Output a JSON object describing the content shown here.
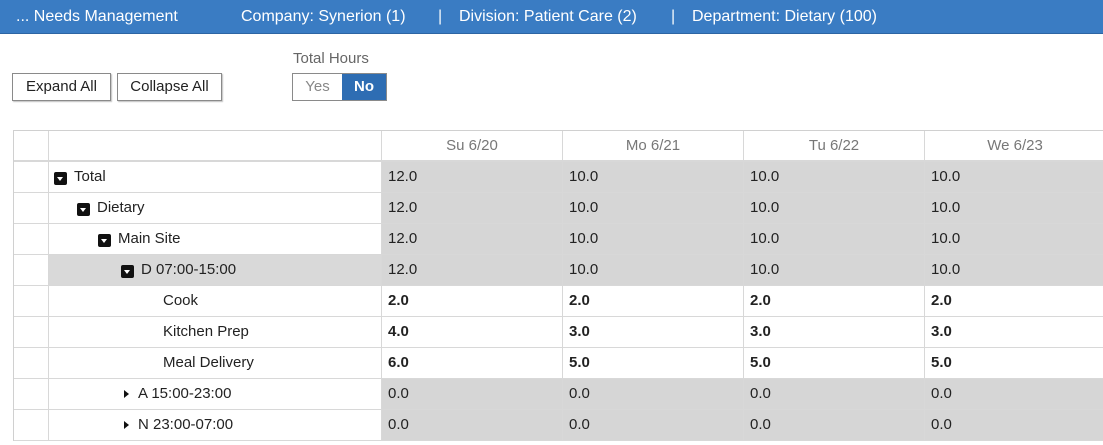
{
  "header": {
    "title": "... Needs Management",
    "company": "Company: Synerion (1)",
    "division": "Division: Patient Care (2)",
    "department": "Department: Dietary (100)",
    "separator": "|"
  },
  "toolbar": {
    "expand_all": "Expand All",
    "collapse_all": "Collapse All",
    "total_hours_label": "Total Hours",
    "yes": "Yes",
    "no": "No"
  },
  "grid": {
    "days": [
      "Su 6/20",
      "Mo 6/21",
      "Tu 6/22",
      "We 6/23"
    ],
    "rows": [
      {
        "label": "Total",
        "state": "expanded",
        "values": [
          "12.0",
          "10.0",
          "10.0",
          "10.0"
        ]
      },
      {
        "label": "Dietary",
        "state": "expanded",
        "values": [
          "12.0",
          "10.0",
          "10.0",
          "10.0"
        ]
      },
      {
        "label": "Main Site",
        "state": "expanded",
        "values": [
          "12.0",
          "10.0",
          "10.0",
          "10.0"
        ]
      },
      {
        "label": "D 07:00-15:00",
        "state": "expanded",
        "values": [
          "12.0",
          "10.0",
          "10.0",
          "10.0"
        ]
      },
      {
        "label": "Cook",
        "state": "leaf",
        "values": [
          "2.0",
          "2.0",
          "2.0",
          "2.0"
        ]
      },
      {
        "label": "Kitchen Prep",
        "state": "leaf",
        "values": [
          "4.0",
          "3.0",
          "3.0",
          "3.0"
        ]
      },
      {
        "label": "Meal Delivery",
        "state": "leaf",
        "values": [
          "6.0",
          "5.0",
          "5.0",
          "5.0"
        ]
      },
      {
        "label": "A 15:00-23:00",
        "state": "collapsed",
        "values": [
          "0.0",
          "0.0",
          "0.0",
          "0.0"
        ]
      },
      {
        "label": "N 23:00-07:00",
        "state": "collapsed",
        "values": [
          "0.0",
          "0.0",
          "0.0",
          "0.0"
        ]
      }
    ]
  }
}
